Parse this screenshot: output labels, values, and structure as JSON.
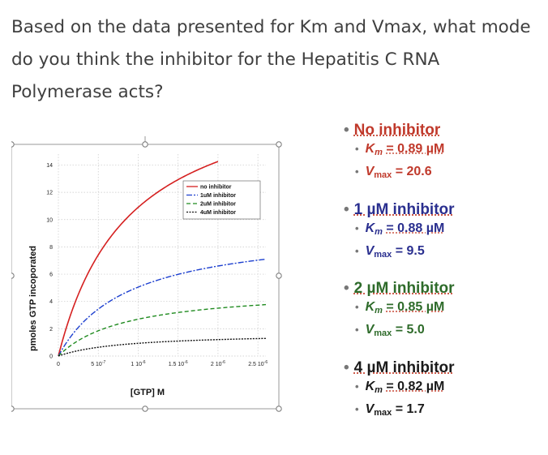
{
  "question": "Based on the data presented for Km and Vmax, what mode do you think the inhibitor for the Hepatitis C RNA Polymerase acts?",
  "chart_data": {
    "type": "line",
    "xlabel": "[GTP]  M",
    "ylabel": "pmoles GTP incoporated",
    "xlim": [
      0,
      2.6e-06
    ],
    "ylim": [
      0,
      14.8
    ],
    "x_ticks": [
      {
        "value": 0,
        "label": "0"
      },
      {
        "value": 5e-07,
        "label": "5 10",
        "exp": "-7"
      },
      {
        "value": 1e-06,
        "label": "1 10",
        "exp": "-6"
      },
      {
        "value": 1.5e-06,
        "label": "1.5 10",
        "exp": "-6"
      },
      {
        "value": 2e-06,
        "label": "2 10",
        "exp": "-6"
      },
      {
        "value": 2.5e-06,
        "label": "2.5 10",
        "exp": "-6"
      }
    ],
    "y_ticks": [
      0,
      2,
      4,
      6,
      8,
      10,
      12,
      14
    ],
    "grid": true,
    "legend_position": "center-right",
    "series": [
      {
        "name": "no inhibitor",
        "km": 8.9e-07,
        "vmax": 20.6,
        "x_max": 2e-06,
        "color": "#d52020",
        "dash": ""
      },
      {
        "name": "1uM inhibitor",
        "km": 8.8e-07,
        "vmax": 9.5,
        "x_max": 2.6e-06,
        "color": "#1c3fcf",
        "dash": "7 2 2 2"
      },
      {
        "name": "2uM inhibitor",
        "km": 8.5e-07,
        "vmax": 5.0,
        "x_max": 2.6e-06,
        "color": "#1e8a1e",
        "dash": "5 3"
      },
      {
        "name": "4uM inhibitor",
        "km": 8.2e-07,
        "vmax": 1.7,
        "x_max": 2.6e-06,
        "color": "#111111",
        "dash": "2 1.5"
      }
    ]
  },
  "panels": [
    {
      "head": "No inhibitor",
      "km": "= 0.89 µM",
      "vmax": "= 20.6",
      "color": "#c0392b"
    },
    {
      "head": "1 µM inhibitor",
      "km": "= 0.88 µM",
      "vmax": "= 9.5",
      "color": "#2a2f8f"
    },
    {
      "head": "2 µM inhibitor",
      "km": "= 0.85 µM",
      "vmax": "= 5.0",
      "color": "#2e6b2a"
    },
    {
      "head": "4 µM inhibitor",
      "km": "= 0.82 µM",
      "vmax": "= 1.7",
      "color": "#1a1a1a"
    }
  ],
  "labels": {
    "K": "K",
    "m": "m",
    "V": "V",
    "max": "max"
  },
  "icon_names": [
    "rotate-handle-icon",
    "bullet-icon"
  ]
}
